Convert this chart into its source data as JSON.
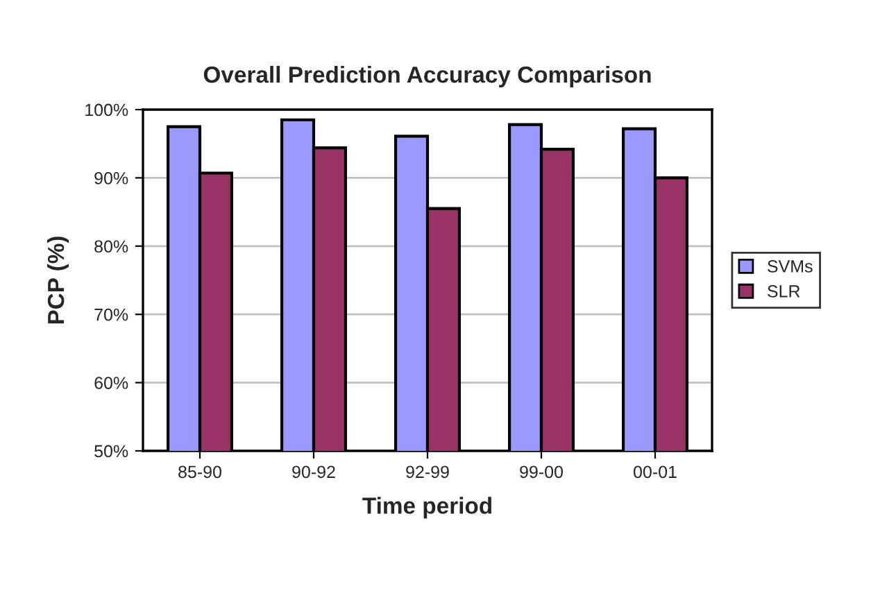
{
  "chart_data": {
    "type": "bar",
    "title": "Overall Prediction Accuracy Comparison",
    "xlabel": "Time period",
    "ylabel": "PCP (%)",
    "categories": [
      "85-90",
      "90-92",
      "92-99",
      "99-00",
      "00-01"
    ],
    "series": [
      {
        "name": "SVMs",
        "color": "#9999ff",
        "values": [
          97.5,
          98.5,
          96.1,
          97.8,
          97.2
        ]
      },
      {
        "name": "SLR",
        "color": "#993366",
        "values": [
          90.7,
          94.4,
          85.5,
          94.2,
          90.0
        ]
      }
    ],
    "ylim": [
      50,
      100
    ],
    "yticks": [
      {
        "value": 50,
        "label": "50%"
      },
      {
        "value": 60,
        "label": "60%"
      },
      {
        "value": 70,
        "label": "70%"
      },
      {
        "value": 80,
        "label": "80%"
      },
      {
        "value": 90,
        "label": "90%"
      },
      {
        "value": 100,
        "label": "100%"
      }
    ],
    "grid": "y",
    "legend": "right"
  }
}
